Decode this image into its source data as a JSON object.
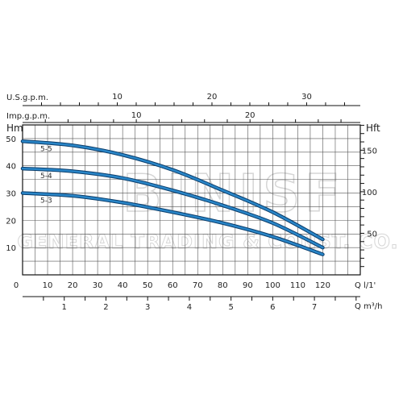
{
  "watermark": {
    "big": "BINISF",
    "small": "GENERAL TRADING & CONST. CO."
  },
  "chart_data": {
    "type": "line",
    "title": "",
    "axes": {
      "usgpm": {
        "label": "U.S.g.p.m.",
        "ticks": [
          10,
          20,
          30
        ]
      },
      "impgpm": {
        "label": "Imp.g.p.m.",
        "ticks": [
          10,
          20
        ]
      },
      "hm": {
        "label": "Hm",
        "ticks": [
          10,
          20,
          30,
          40,
          50
        ],
        "range": [
          0,
          55
        ]
      },
      "hft": {
        "label": "Hft",
        "ticks": [
          50,
          100,
          150
        ],
        "range": [
          0,
          180.4
        ]
      },
      "q_lmin": {
        "label": "Q  l/1'",
        "ticks": [
          0,
          10,
          20,
          30,
          40,
          50,
          60,
          70,
          80,
          90,
          100,
          110,
          120
        ],
        "range": [
          0,
          135
        ]
      },
      "q_m3h": {
        "label": "Q  m³/h",
        "ticks": [
          1,
          2,
          3,
          4,
          5,
          6,
          7
        ],
        "range": [
          0,
          8.1
        ]
      }
    },
    "grid": true,
    "series": [
      {
        "name": "5-5",
        "x": [
          0,
          20,
          40,
          60,
          80,
          100,
          120
        ],
        "y": [
          49,
          47.5,
          44,
          38.5,
          31,
          23,
          13
        ]
      },
      {
        "name": "5-4",
        "x": [
          0,
          20,
          40,
          60,
          80,
          100,
          120
        ],
        "y": [
          39,
          38,
          35.5,
          31,
          25.5,
          19,
          10
        ]
      },
      {
        "name": "5-3",
        "x": [
          0,
          20,
          40,
          60,
          80,
          100,
          120
        ],
        "y": [
          30,
          29,
          26.5,
          23,
          19,
          14,
          7.5
        ]
      }
    ]
  }
}
